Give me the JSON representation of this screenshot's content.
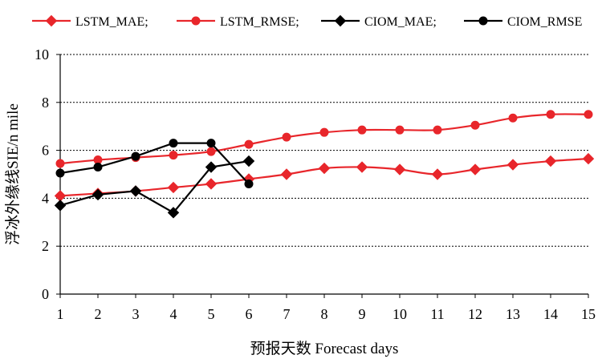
{
  "chart_data": {
    "type": "line",
    "xlabel": "预报天数 Forecast days",
    "ylabel": "浮冰外缘线SIE/n mile",
    "ylim": [
      0,
      10
    ],
    "yticks": [
      0,
      2,
      4,
      6,
      8,
      10
    ],
    "xlim": [
      1,
      15
    ],
    "xticks": [
      1,
      2,
      3,
      4,
      5,
      6,
      7,
      8,
      9,
      10,
      11,
      12,
      13,
      14,
      15
    ],
    "grid": "horizontal dashed",
    "legend_position": "top",
    "series": [
      {
        "name": "LSTM_MAE;",
        "color": "#e8262b",
        "marker": "diamond",
        "x": [
          1,
          2,
          3,
          4,
          5,
          6,
          7,
          8,
          9,
          10,
          11,
          12,
          13,
          14,
          15
        ],
        "values": [
          4.1,
          4.2,
          4.3,
          4.45,
          4.6,
          4.8,
          5.0,
          5.25,
          5.3,
          5.2,
          5.0,
          5.2,
          5.4,
          5.55,
          5.65
        ]
      },
      {
        "name": "LSTM_RMSE;",
        "color": "#e8262b",
        "marker": "circle",
        "x": [
          1,
          2,
          3,
          4,
          5,
          6,
          7,
          8,
          9,
          10,
          11,
          12,
          13,
          14,
          15
        ],
        "values": [
          5.45,
          5.6,
          5.7,
          5.8,
          5.95,
          6.25,
          6.55,
          6.75,
          6.85,
          6.85,
          6.85,
          7.05,
          7.35,
          7.5,
          7.5
        ]
      },
      {
        "name": "CIOM_MAE;",
        "color": "#000000",
        "marker": "diamond",
        "x": [
          1,
          2,
          3,
          4,
          5,
          6
        ],
        "values": [
          3.7,
          4.15,
          4.3,
          3.4,
          5.3,
          5.55
        ]
      },
      {
        "name": "CIOM_RMSE",
        "color": "#000000",
        "marker": "circle",
        "x": [
          1,
          2,
          3,
          4,
          5,
          6
        ],
        "values": [
          5.05,
          5.3,
          5.75,
          6.3,
          6.3,
          4.6
        ]
      }
    ]
  }
}
